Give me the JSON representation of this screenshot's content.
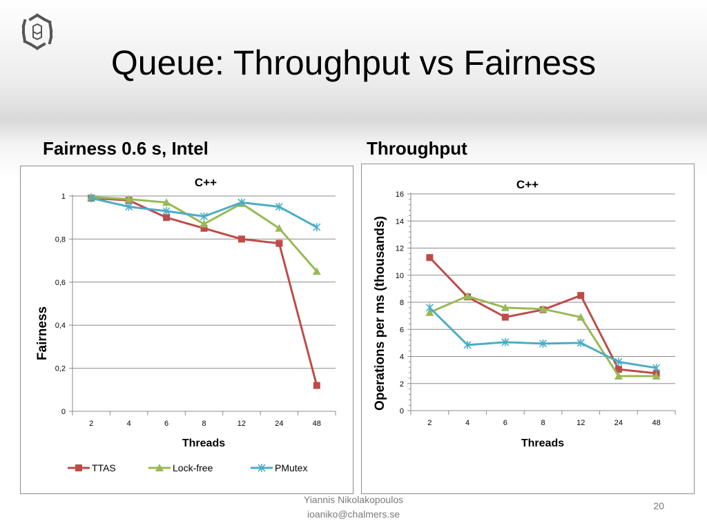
{
  "slide": {
    "title": "Queue: Throughput vs Fairness",
    "left_section_title": "Fairness 0.6 s, Intel",
    "right_section_title": "Throughput",
    "footer_author": "Yiannis Nikolakopoulos",
    "footer_email": "ioaniko@chalmers.se",
    "slide_number": "20"
  },
  "chart_data": [
    {
      "type": "line",
      "title": "C++",
      "xlabel": "Threads",
      "ylabel": "Fairness",
      "categories": [
        "2",
        "4",
        "6",
        "8",
        "12",
        "24",
        "48"
      ],
      "ylim": [
        0,
        1
      ],
      "yticks": [
        "0",
        "0,2",
        "0,4",
        "0,6",
        "0,8",
        "1"
      ],
      "grid": true,
      "legend": "bottom",
      "series": [
        {
          "name": "TTAS",
          "marker": "square",
          "color": "#be4b48",
          "values": [
            0.99,
            0.98,
            0.9,
            0.85,
            0.8,
            0.78,
            0.12
          ]
        },
        {
          "name": "Lock-free",
          "marker": "triangle",
          "color": "#98b954",
          "values": [
            0.995,
            0.985,
            0.97,
            0.87,
            0.965,
            0.85,
            0.65
          ]
        },
        {
          "name": "PMutex",
          "marker": "star",
          "color": "#4bacc6",
          "values": [
            0.99,
            0.95,
            0.93,
            0.905,
            0.97,
            0.95,
            0.855
          ]
        }
      ]
    },
    {
      "type": "line",
      "title": "C++",
      "xlabel": "Threads",
      "ylabel": "Operations per ms (thousands)",
      "categories": [
        "2",
        "4",
        "6",
        "8",
        "12",
        "24",
        "48"
      ],
      "ylim": [
        0,
        16
      ],
      "yticks": [
        "0",
        "2",
        "4",
        "6",
        "8",
        "10",
        "12",
        "14",
        "16"
      ],
      "grid": true,
      "legend": "none",
      "series": [
        {
          "name": "TTAS",
          "marker": "square",
          "color": "#be4b48",
          "values": [
            11.3,
            8.4,
            6.9,
            7.45,
            8.5,
            3.05,
            2.75
          ]
        },
        {
          "name": "Lock-free",
          "marker": "triangle",
          "color": "#98b954",
          "values": [
            7.25,
            8.45,
            7.6,
            7.5,
            6.9,
            2.55,
            2.55
          ]
        },
        {
          "name": "PMutex",
          "marker": "star",
          "color": "#4bacc6",
          "values": [
            7.6,
            4.85,
            5.05,
            4.95,
            5.0,
            3.6,
            3.15
          ]
        }
      ]
    }
  ]
}
